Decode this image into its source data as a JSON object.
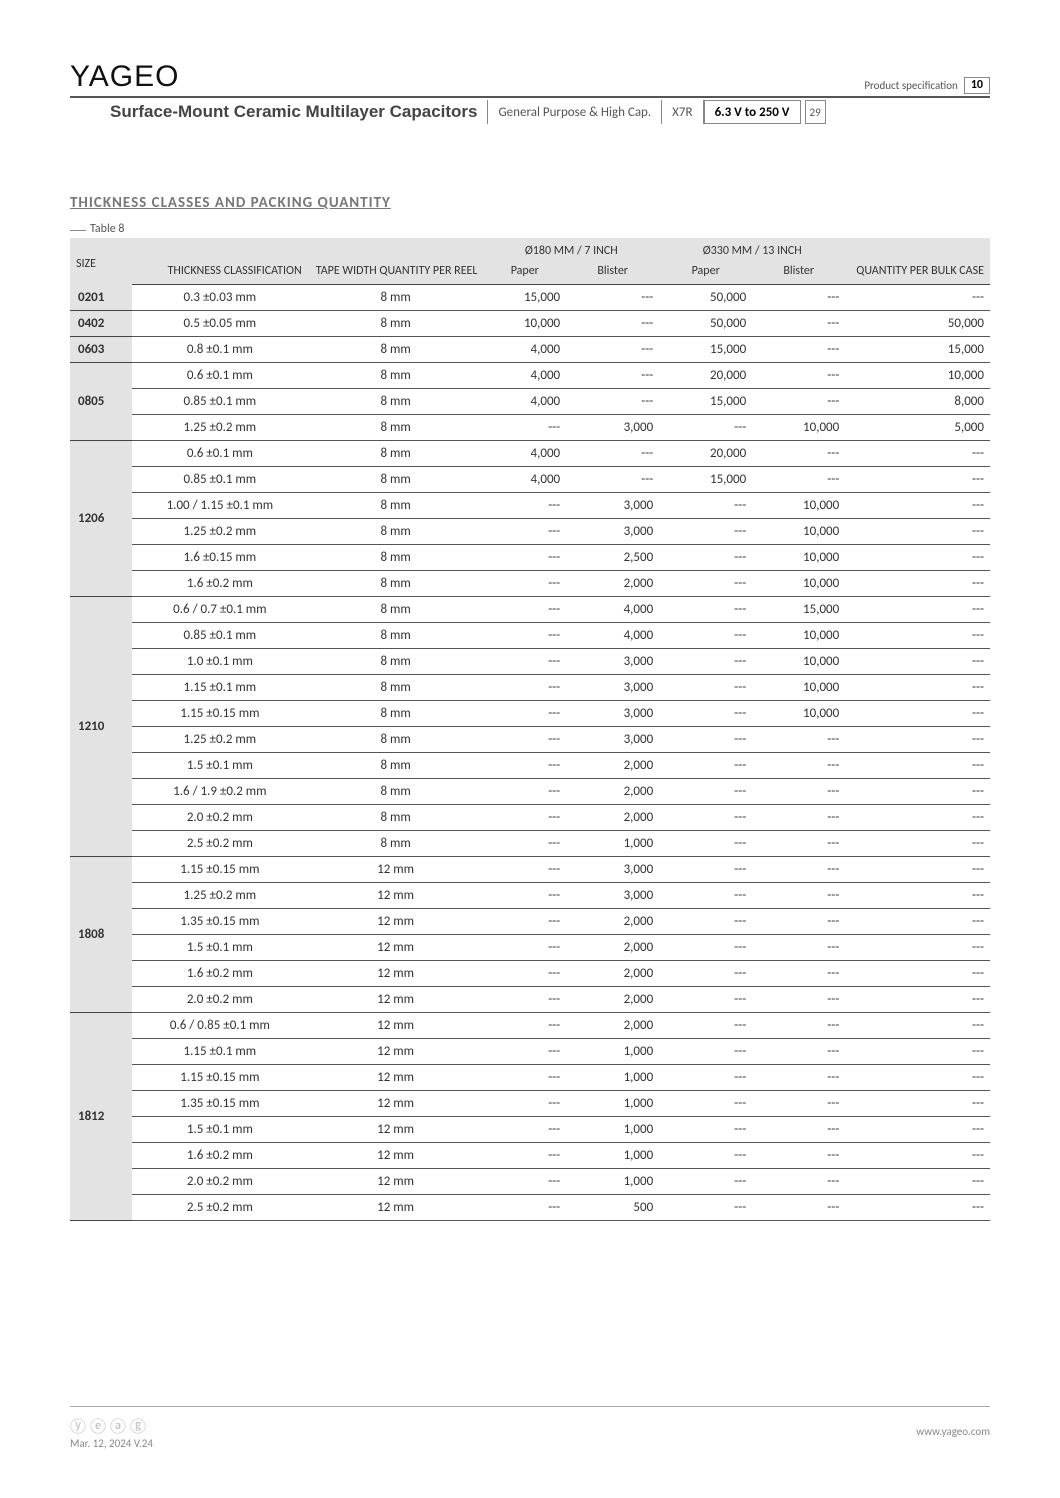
{
  "brand": "YAGEO",
  "spec_label": "Product specification",
  "page_current": "10",
  "page_total": "29",
  "subheader": {
    "title": "Surface-Mount Ceramic Multilayer Capacitors",
    "category": "General Purpose & High Cap.",
    "dielectric": "X7R",
    "voltage": "6.3 V to 250 V"
  },
  "section_title": "THICKNESS CLASSES AND PACKING QUANTITY",
  "table_label": "Table 8",
  "headers": {
    "size": "SIZE",
    "thickness": "THICKNESS CLASSIFICATION",
    "tape": "TAPE WIDTH QUANTITY PER REEL",
    "g180": "Ø180 MM / 7 INCH",
    "g330": "Ø330 MM / 13 INCH",
    "paper": "Paper",
    "blister": "Blister",
    "bulk": "QUANTITY PER BULK CASE"
  },
  "groups": [
    {
      "size": "0201",
      "rows": [
        {
          "t": "0.3 ±0.03 mm",
          "w": "8 mm",
          "p1": "15,000",
          "b1": "---",
          "p2": "50,000",
          "b2": "---",
          "bulk": "---"
        }
      ]
    },
    {
      "size": "0402",
      "rows": [
        {
          "t": "0.5 ±0.05 mm",
          "w": "8 mm",
          "p1": "10,000",
          "b1": "---",
          "p2": "50,000",
          "b2": "---",
          "bulk": "50,000"
        }
      ]
    },
    {
      "size": "0603",
      "rows": [
        {
          "t": "0.8 ±0.1 mm",
          "w": "8 mm",
          "p1": "4,000",
          "b1": "---",
          "p2": "15,000",
          "b2": "---",
          "bulk": "15,000"
        }
      ]
    },
    {
      "size": "0805",
      "rows": [
        {
          "t": "0.6 ±0.1 mm",
          "w": "8 mm",
          "p1": "4,000",
          "b1": "---",
          "p2": "20,000",
          "b2": "---",
          "bulk": "10,000"
        },
        {
          "t": "0.85 ±0.1 mm",
          "w": "8 mm",
          "p1": "4,000",
          "b1": "---",
          "p2": "15,000",
          "b2": "---",
          "bulk": "8,000"
        },
        {
          "t": "1.25 ±0.2 mm",
          "w": "8 mm",
          "p1": "---",
          "b1": "3,000",
          "p2": "---",
          "b2": "10,000",
          "bulk": "5,000"
        }
      ]
    },
    {
      "size": "1206",
      "rows": [
        {
          "t": "0.6 ±0.1 mm",
          "w": "8 mm",
          "p1": "4,000",
          "b1": "---",
          "p2": "20,000",
          "b2": "---",
          "bulk": "---"
        },
        {
          "t": "0.85 ±0.1 mm",
          "w": "8 mm",
          "p1": "4,000",
          "b1": "---",
          "p2": "15,000",
          "b2": "---",
          "bulk": "---"
        },
        {
          "t": "1.00 / 1.15 ±0.1 mm",
          "w": "8 mm",
          "p1": "---",
          "b1": "3,000",
          "p2": "---",
          "b2": "10,000",
          "bulk": "---"
        },
        {
          "t": "1.25 ±0.2 mm",
          "w": "8 mm",
          "p1": "---",
          "b1": "3,000",
          "p2": "---",
          "b2": "10,000",
          "bulk": "---"
        },
        {
          "t": "1.6 ±0.15 mm",
          "w": "8 mm",
          "p1": "---",
          "b1": "2,500",
          "p2": "---",
          "b2": "10,000",
          "bulk": "---"
        },
        {
          "t": "1.6 ±0.2 mm",
          "w": "8 mm",
          "p1": "---",
          "b1": "2,000",
          "p2": "---",
          "b2": "10,000",
          "bulk": "---"
        }
      ]
    },
    {
      "size": "1210",
      "rows": [
        {
          "t": "0.6 / 0.7 ±0.1 mm",
          "w": "8 mm",
          "p1": "---",
          "b1": "4,000",
          "p2": "---",
          "b2": "15,000",
          "bulk": "---"
        },
        {
          "t": "0.85 ±0.1 mm",
          "w": "8 mm",
          "p1": "---",
          "b1": "4,000",
          "p2": "---",
          "b2": "10,000",
          "bulk": "---"
        },
        {
          "t": "1.0 ±0.1 mm",
          "w": "8 mm",
          "p1": "---",
          "b1": "3,000",
          "p2": "---",
          "b2": "10,000",
          "bulk": "---"
        },
        {
          "t": "1.15 ±0.1 mm",
          "w": "8 mm",
          "p1": "---",
          "b1": "3,000",
          "p2": "---",
          "b2": "10,000",
          "bulk": "---"
        },
        {
          "t": "1.15 ±0.15 mm",
          "w": "8 mm",
          "p1": "---",
          "b1": "3,000",
          "p2": "---",
          "b2": "10,000",
          "bulk": "---"
        },
        {
          "t": "1.25 ±0.2 mm",
          "w": "8 mm",
          "p1": "---",
          "b1": "3,000",
          "p2": "---",
          "b2": "---",
          "bulk": "---"
        },
        {
          "t": "1.5 ±0.1 mm",
          "w": "8 mm",
          "p1": "---",
          "b1": "2,000",
          "p2": "---",
          "b2": "---",
          "bulk": "---"
        },
        {
          "t": "1.6 / 1.9 ±0.2 mm",
          "w": "8 mm",
          "p1": "---",
          "b1": "2,000",
          "p2": "---",
          "b2": "---",
          "bulk": "---"
        },
        {
          "t": "2.0 ±0.2 mm",
          "w": "8 mm",
          "p1": "---",
          "b1": "2,000",
          "p2": "---",
          "b2": "---",
          "bulk": "---"
        },
        {
          "t": "2.5 ±0.2 mm",
          "w": "8 mm",
          "p1": "---",
          "b1": "1,000",
          "p2": "---",
          "b2": "---",
          "bulk": "---"
        }
      ]
    },
    {
      "size": "1808",
      "rows": [
        {
          "t": "1.15 ±0.15 mm",
          "w": "12 mm",
          "p1": "---",
          "b1": "3,000",
          "p2": "---",
          "b2": "---",
          "bulk": "---"
        },
        {
          "t": "1.25 ±0.2 mm",
          "w": "12 mm",
          "p1": "---",
          "b1": "3,000",
          "p2": "---",
          "b2": "---",
          "bulk": "---"
        },
        {
          "t": "1.35 ±0.15 mm",
          "w": "12 mm",
          "p1": "---",
          "b1": "2,000",
          "p2": "---",
          "b2": "---",
          "bulk": "---"
        },
        {
          "t": "1.5 ±0.1 mm",
          "w": "12 mm",
          "p1": "---",
          "b1": "2,000",
          "p2": "---",
          "b2": "---",
          "bulk": "---"
        },
        {
          "t": "1.6 ±0.2 mm",
          "w": "12 mm",
          "p1": "---",
          "b1": "2,000",
          "p2": "---",
          "b2": "---",
          "bulk": "---"
        },
        {
          "t": "2.0 ±0.2 mm",
          "w": "12 mm",
          "p1": "---",
          "b1": "2,000",
          "p2": "---",
          "b2": "---",
          "bulk": "---"
        }
      ]
    },
    {
      "size": "1812",
      "rows": [
        {
          "t": "0.6 / 0.85 ±0.1 mm",
          "w": "12 mm",
          "p1": "---",
          "b1": "2,000",
          "p2": "---",
          "b2": "---",
          "bulk": "---"
        },
        {
          "t": "1.15 ±0.1 mm",
          "w": "12 mm",
          "p1": "---",
          "b1": "1,000",
          "p2": "---",
          "b2": "---",
          "bulk": "---"
        },
        {
          "t": "1.15 ±0.15 mm",
          "w": "12 mm",
          "p1": "---",
          "b1": "1,000",
          "p2": "---",
          "b2": "---",
          "bulk": "---"
        },
        {
          "t": "1.35 ±0.15 mm",
          "w": "12 mm",
          "p1": "---",
          "b1": "1,000",
          "p2": "---",
          "b2": "---",
          "bulk": "---"
        },
        {
          "t": "1.5 ±0.1 mm",
          "w": "12 mm",
          "p1": "---",
          "b1": "1,000",
          "p2": "---",
          "b2": "---",
          "bulk": "---"
        },
        {
          "t": "1.6 ±0.2 mm",
          "w": "12 mm",
          "p1": "---",
          "b1": "1,000",
          "p2": "---",
          "b2": "---",
          "bulk": "---"
        },
        {
          "t": "2.0 ±0.2 mm",
          "w": "12 mm",
          "p1": "---",
          "b1": "1,000",
          "p2": "---",
          "b2": "---",
          "bulk": "---"
        },
        {
          "t": "2.5 ±0.2 mm",
          "w": "12 mm",
          "p1": "---",
          "b1": "500",
          "p2": "---",
          "b2": "---",
          "bulk": "---"
        }
      ]
    }
  ],
  "footer": {
    "date": "Mar. 12, 2024  V.24",
    "url": "www.yageo.com"
  }
}
